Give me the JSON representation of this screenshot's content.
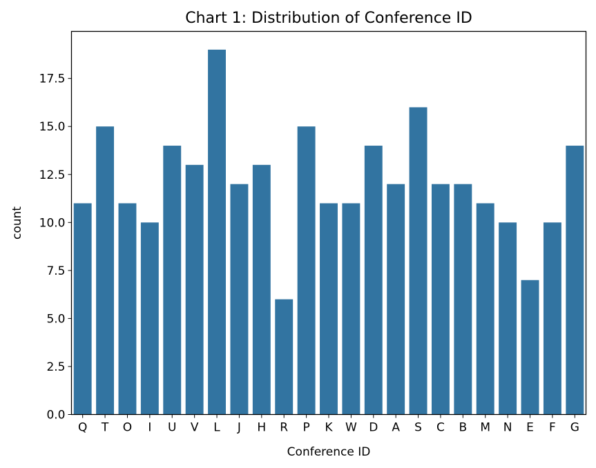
{
  "chart_data": {
    "type": "bar",
    "title": "Chart 1: Distribution of Conference ID",
    "xlabel": "Conference ID",
    "ylabel": "count",
    "categories": [
      "Q",
      "T",
      "O",
      "I",
      "U",
      "V",
      "L",
      "J",
      "H",
      "R",
      "P",
      "K",
      "W",
      "D",
      "A",
      "S",
      "C",
      "B",
      "M",
      "N",
      "E",
      "F",
      "G"
    ],
    "values": [
      11,
      15,
      11,
      10,
      14,
      13,
      19,
      12,
      13,
      6,
      15,
      11,
      11,
      14,
      12,
      16,
      12,
      12,
      11,
      10,
      7,
      10,
      14
    ],
    "ylim": [
      0,
      19.95
    ],
    "yticks": [
      0,
      2.5,
      5,
      7.5,
      10,
      12.5,
      15,
      17.5
    ],
    "ytick_labels": [
      "0.0",
      "2.5",
      "5.0",
      "7.5",
      "10.0",
      "12.5",
      "15.0",
      "17.5"
    ],
    "grid": false,
    "bar_color": "#3274a1"
  }
}
